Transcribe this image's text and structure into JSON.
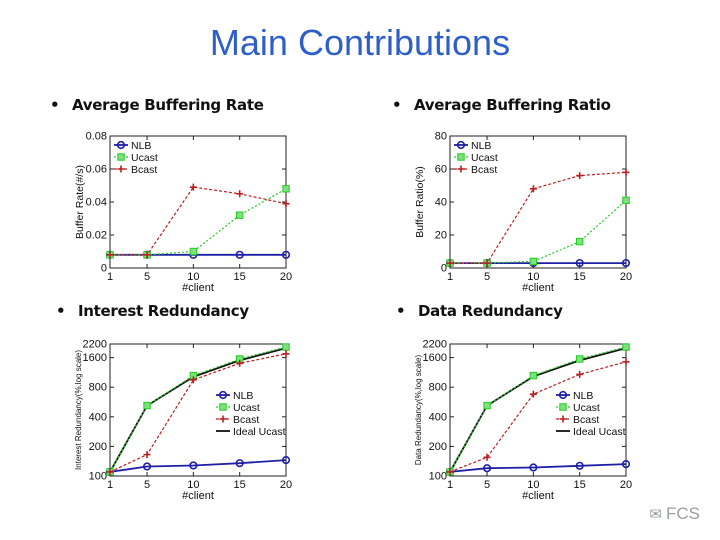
{
  "title": "Main Contributions",
  "bullets": [
    "Average Buffering Rate",
    "Average Buffering Ratio",
    "Interest Redundancy",
    "Data Redundancy"
  ],
  "watermark": "FCS",
  "colors": {
    "title": "#2e5fc9",
    "nlb": "#1f1fa6",
    "ucast": "#22cc22",
    "bcast": "#bb1f1f",
    "ideal": "#111111"
  },
  "chart_data": [
    {
      "type": "line",
      "xlabel": "#client",
      "ylabel": "Buffer Rate(#/s)",
      "x": [
        1,
        5,
        10,
        15,
        20
      ],
      "xticks": [
        "1",
        "5",
        "10",
        "15",
        "20"
      ],
      "ylim": [
        0,
        0.08
      ],
      "yticks": [
        0,
        0.02,
        0.04,
        0.06,
        0.08
      ],
      "ytick_labels": [
        "0",
        "0.02",
        "0.04",
        "0.06",
        "0.08"
      ],
      "log": false,
      "legend": "top-left",
      "series": [
        {
          "name": "NLB",
          "values": [
            0.008,
            0.008,
            0.008,
            0.008,
            0.008
          ]
        },
        {
          "name": "Ucast",
          "values": [
            0.008,
            0.008,
            0.01,
            0.032,
            0.048
          ]
        },
        {
          "name": "Bcast",
          "values": [
            0.008,
            0.008,
            0.049,
            0.045,
            0.039
          ]
        }
      ]
    },
    {
      "type": "line",
      "xlabel": "#client",
      "ylabel": "Buffer Ratio(%)",
      "x": [
        1,
        5,
        10,
        15,
        20
      ],
      "xticks": [
        "1",
        "5",
        "10",
        "15",
        "20"
      ],
      "ylim": [
        0,
        80
      ],
      "yticks": [
        0,
        20,
        40,
        60,
        80
      ],
      "ytick_labels": [
        "0",
        "20",
        "40",
        "60",
        "80"
      ],
      "log": false,
      "legend": "top-left",
      "series": [
        {
          "name": "NLB",
          "values": [
            3,
            3,
            3,
            3,
            3
          ]
        },
        {
          "name": "Ucast",
          "values": [
            3,
            3,
            4,
            16,
            41
          ]
        },
        {
          "name": "Bcast",
          "values": [
            3,
            3,
            48,
            56,
            58
          ]
        }
      ]
    },
    {
      "type": "line",
      "xlabel": "#client",
      "ylabel": "Interest Redundancy(%,log scale)",
      "x": [
        1,
        5,
        10,
        15,
        20
      ],
      "xticks": [
        "1",
        "5",
        "10",
        "15",
        "20"
      ],
      "ylim": [
        100,
        2200
      ],
      "yticks": [
        100,
        200,
        400,
        800,
        1600,
        2200
      ],
      "ytick_labels": [
        "100",
        "200",
        "400",
        "800",
        "1600",
        "2200"
      ],
      "log": true,
      "legend": "right",
      "series": [
        {
          "name": "NLB",
          "values": [
            110,
            125,
            128,
            135,
            145
          ]
        },
        {
          "name": "Ucast",
          "values": [
            110,
            520,
            1050,
            1550,
            2050
          ]
        },
        {
          "name": "Bcast",
          "values": [
            110,
            165,
            950,
            1400,
            1750
          ]
        },
        {
          "name": "Ideal Ucast",
          "values": [
            110,
            520,
            1020,
            1500,
            2000
          ]
        }
      ]
    },
    {
      "type": "line",
      "xlabel": "#client",
      "ylabel": "Data Redundancy(%,log scale)",
      "x": [
        1,
        5,
        10,
        15,
        20
      ],
      "xticks": [
        "1",
        "5",
        "10",
        "15",
        "20"
      ],
      "ylim": [
        100,
        2200
      ],
      "yticks": [
        100,
        200,
        400,
        800,
        1600,
        2200
      ],
      "ytick_labels": [
        "100",
        "200",
        "400",
        "800",
        "1600",
        "2200"
      ],
      "log": true,
      "legend": "right",
      "series": [
        {
          "name": "NLB",
          "values": [
            110,
            120,
            122,
            127,
            132
          ]
        },
        {
          "name": "Ucast",
          "values": [
            110,
            520,
            1050,
            1550,
            2050
          ]
        },
        {
          "name": "Bcast",
          "values": [
            110,
            155,
            680,
            1080,
            1450
          ]
        },
        {
          "name": "Ideal Ucast",
          "values": [
            110,
            520,
            1030,
            1500,
            2000
          ]
        }
      ]
    }
  ]
}
